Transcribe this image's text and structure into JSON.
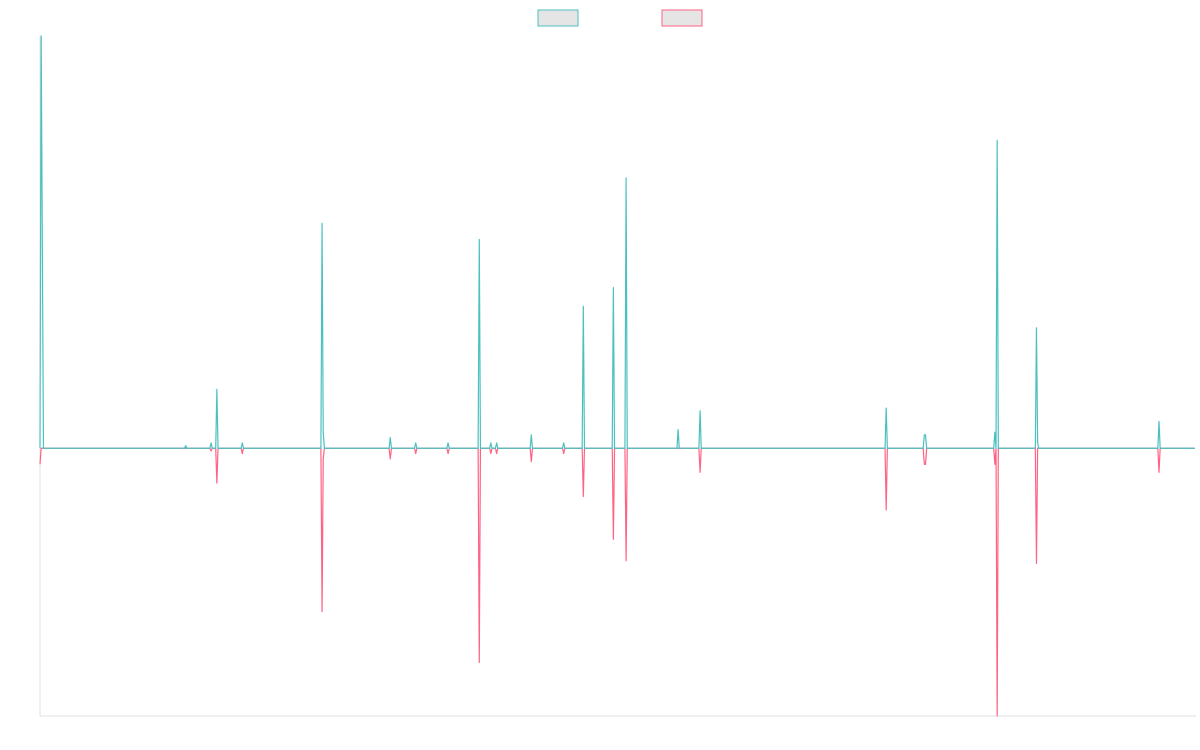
{
  "colors": {
    "series_a": "#4bc0c0",
    "series_b": "#ff6384",
    "legend_fill": "#e5e5e5",
    "axis": "#e0e0e0"
  },
  "chart_data": {
    "type": "line",
    "title": "",
    "xlabel": "",
    "ylabel": "",
    "grid": false,
    "legend_position": "top",
    "xlim": [
      0,
      1000
    ],
    "ylim": [
      -100,
      154
    ],
    "series": [
      {
        "color": "#4bc0c0",
        "points": [
          [
            0,
            0
          ],
          [
            1,
            154
          ],
          [
            3,
            0
          ],
          [
            125,
            0
          ],
          [
            126,
            1
          ],
          [
            127,
            0
          ],
          [
            147,
            0
          ],
          [
            148,
            2
          ],
          [
            149,
            0
          ],
          [
            152,
            0
          ],
          [
            153,
            22
          ],
          [
            154,
            0
          ],
          [
            174,
            0
          ],
          [
            175,
            2
          ],
          [
            176,
            0
          ],
          [
            243,
            0
          ],
          [
            244,
            84
          ],
          [
            245,
            6
          ],
          [
            246,
            0
          ],
          [
            302,
            0
          ],
          [
            303,
            4
          ],
          [
            304,
            0
          ],
          [
            324,
            0
          ],
          [
            325,
            2
          ],
          [
            326,
            0
          ],
          [
            352,
            0
          ],
          [
            353,
            2
          ],
          [
            354,
            0
          ],
          [
            379,
            0
          ],
          [
            380,
            78
          ],
          [
            381,
            0
          ],
          [
            389,
            0
          ],
          [
            390,
            2
          ],
          [
            391,
            0
          ],
          [
            394,
            0
          ],
          [
            395,
            2
          ],
          [
            396,
            0
          ],
          [
            424,
            0
          ],
          [
            425,
            5
          ],
          [
            426,
            0
          ],
          [
            452,
            0
          ],
          [
            453,
            2
          ],
          [
            454,
            0
          ],
          [
            469,
            0
          ],
          [
            470,
            53
          ],
          [
            471,
            0
          ],
          [
            495,
            0
          ],
          [
            496,
            60
          ],
          [
            497,
            0
          ],
          [
            506,
            0
          ],
          [
            507,
            101
          ],
          [
            508,
            0
          ],
          [
            551,
            0
          ],
          [
            552,
            7
          ],
          [
            553,
            0
          ],
          [
            570,
            0
          ],
          [
            571,
            14
          ],
          [
            572,
            0
          ],
          [
            731,
            0
          ],
          [
            732,
            15
          ],
          [
            733,
            0
          ],
          [
            764,
            0
          ],
          [
            765,
            5
          ],
          [
            766,
            5
          ],
          [
            767,
            0
          ],
          [
            825,
            0
          ],
          [
            826,
            6
          ],
          [
            827,
            0
          ],
          [
            828,
            115
          ],
          [
            829,
            0
          ],
          [
            861,
            0
          ],
          [
            862,
            45
          ],
          [
            863,
            2
          ],
          [
            864,
            0
          ],
          [
            967,
            0
          ],
          [
            968,
            10
          ],
          [
            969,
            0
          ],
          [
            999,
            0
          ]
        ]
      },
      {
        "color": "#ff6384",
        "points": [
          [
            0,
            -6
          ],
          [
            1,
            0
          ],
          [
            125,
            0
          ],
          [
            126,
            0
          ],
          [
            127,
            0
          ],
          [
            147,
            0
          ],
          [
            148,
            -1
          ],
          [
            149,
            0
          ],
          [
            152,
            0
          ],
          [
            153,
            -13
          ],
          [
            154,
            0
          ],
          [
            174,
            0
          ],
          [
            175,
            -2
          ],
          [
            176,
            0
          ],
          [
            243,
            0
          ],
          [
            244,
            -61
          ],
          [
            245,
            -4
          ],
          [
            246,
            0
          ],
          [
            302,
            0
          ],
          [
            303,
            -4
          ],
          [
            304,
            0
          ],
          [
            324,
            0
          ],
          [
            325,
            -2
          ],
          [
            326,
            0
          ],
          [
            352,
            0
          ],
          [
            353,
            -2
          ],
          [
            354,
            0
          ],
          [
            379,
            0
          ],
          [
            380,
            -80
          ],
          [
            381,
            0
          ],
          [
            389,
            0
          ],
          [
            390,
            -2
          ],
          [
            391,
            0
          ],
          [
            394,
            0
          ],
          [
            395,
            -2
          ],
          [
            396,
            0
          ],
          [
            424,
            0
          ],
          [
            425,
            -5
          ],
          [
            426,
            0
          ],
          [
            452,
            0
          ],
          [
            453,
            -2
          ],
          [
            454,
            0
          ],
          [
            469,
            0
          ],
          [
            470,
            -18
          ],
          [
            471,
            0
          ],
          [
            495,
            0
          ],
          [
            496,
            -34
          ],
          [
            497,
            0
          ],
          [
            506,
            0
          ],
          [
            507,
            -42
          ],
          [
            508,
            0
          ],
          [
            551,
            0
          ],
          [
            552,
            0
          ],
          [
            553,
            0
          ],
          [
            570,
            0
          ],
          [
            571,
            -9
          ],
          [
            572,
            0
          ],
          [
            731,
            0
          ],
          [
            732,
            -23
          ],
          [
            733,
            0
          ],
          [
            764,
            0
          ],
          [
            765,
            -6
          ],
          [
            766,
            -6
          ],
          [
            767,
            0
          ],
          [
            825,
            0
          ],
          [
            826,
            -6
          ],
          [
            827,
            0
          ],
          [
            828,
            -100
          ],
          [
            829,
            0
          ],
          [
            861,
            0
          ],
          [
            862,
            -43
          ],
          [
            863,
            0
          ],
          [
            864,
            0
          ],
          [
            967,
            0
          ],
          [
            968,
            -9
          ],
          [
            969,
            0
          ],
          [
            999,
            0
          ]
        ]
      }
    ]
  }
}
